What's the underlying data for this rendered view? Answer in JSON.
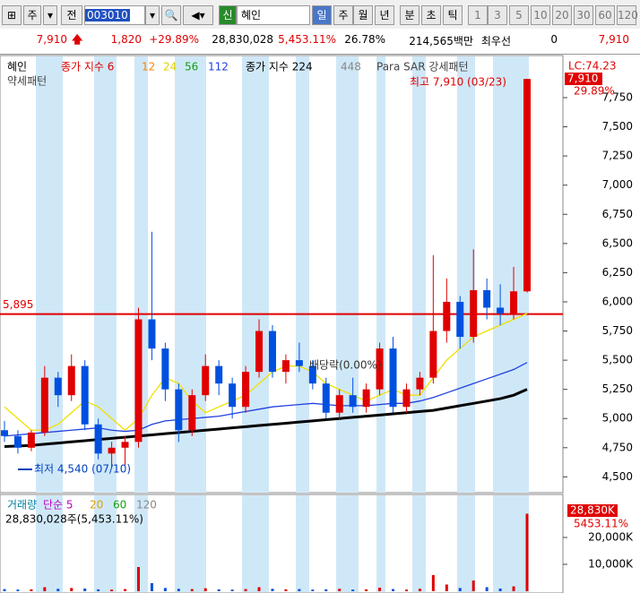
{
  "toolbar": {
    "market": "주",
    "prev": "전",
    "code": "003010",
    "new": "신",
    "name": "혜인",
    "periods": [
      "일",
      "주",
      "월",
      "년",
      "분",
      "초",
      "틱",
      "1",
      "3",
      "5",
      "10",
      "20",
      "30",
      "60",
      "120"
    ]
  },
  "info_bar": [
    "7,910",
    "1,820",
    "+29.89%",
    "28,830,028",
    "5,453.11%",
    "26.78%",
    "214,565백만",
    "최우선",
    "0",
    "7,910"
  ],
  "chart_data": [
    {
      "type": "candlestick",
      "legend": {
        "name": "혜인",
        "ma_label": "종가 지수 6",
        "ma_periods": [
          "12",
          "24",
          "56",
          "112"
        ],
        "ma_long_label": "종가 지수 224",
        "ma_long2": "448",
        "sar_label": "Para SAR 강세패턴",
        "sar_label2": "약세패턴"
      },
      "lc_label": "LC:74.23",
      "last_label": "7,910",
      "change_label": "29.89%",
      "high_annotation": "최고 7,910 (03/23)",
      "low_annotation": "최저 4,540 (07/10)",
      "event_annotation": "배당락(0.00%)",
      "reference_line": {
        "value": 5895,
        "label": "5,895",
        "color": "#e00000"
      },
      "ylim": [
        4380,
        8080
      ],
      "yticks": [
        {
          "value": 4500,
          "label": "4,500"
        },
        {
          "value": 4750,
          "label": "4,750"
        },
        {
          "value": 5000,
          "label": "5,000"
        },
        {
          "value": 5250,
          "label": "5,250"
        },
        {
          "value": 5500,
          "label": "5,500"
        },
        {
          "value": 5750,
          "label": "5,750"
        },
        {
          "value": 6000,
          "label": "6,000"
        },
        {
          "value": 6250,
          "label": "6,250"
        },
        {
          "value": 6500,
          "label": "6,500"
        },
        {
          "value": 6750,
          "label": "6,750"
        },
        {
          "value": 7000,
          "label": "7,000"
        },
        {
          "value": 7250,
          "label": "7,250"
        },
        {
          "value": 7500,
          "label": "7,500"
        },
        {
          "value": 7750,
          "label": "7,750"
        }
      ],
      "up_color": "#e00000",
      "down_color": "#0050e0",
      "open": [
        4900,
        4850,
        4750,
        4880,
        5350,
        5200,
        5450,
        4950,
        4700,
        4750,
        4800,
        5850,
        5600,
        5250,
        4900,
        5200,
        5450,
        5300,
        5100,
        5400,
        5750,
        5400,
        5500,
        5450,
        5300,
        5050,
        5200,
        5100,
        5250,
        5600,
        5100,
        5250,
        5350,
        5750,
        6000,
        5700,
        6100,
        5950,
        5900,
        6090
      ],
      "high": [
        4980,
        4900,
        4900,
        5450,
        5400,
        5550,
        5500,
        5000,
        4800,
        4850,
        5950,
        6600,
        5650,
        5300,
        5250,
        5550,
        5500,
        5350,
        5450,
        5850,
        5800,
        5550,
        5650,
        5500,
        5350,
        5250,
        5350,
        5300,
        5650,
        5700,
        5300,
        5400,
        6400,
        6200,
        6050,
        6450,
        6200,
        6150,
        6300,
        7910
      ],
      "low": [
        4800,
        4700,
        4720,
        4850,
        5100,
        5150,
        4900,
        4650,
        4580,
        4600,
        4750,
        5500,
        5150,
        4800,
        4850,
        5150,
        5200,
        5000,
        5050,
        5350,
        5350,
        5300,
        5400,
        5250,
        5000,
        5000,
        5050,
        5050,
        5200,
        5050,
        5050,
        5200,
        5300,
        5650,
        5600,
        5650,
        5850,
        5800,
        5850,
        6080
      ],
      "close": [
        4850,
        4750,
        4880,
        5350,
        5200,
        5450,
        4950,
        4700,
        4750,
        4800,
        5850,
        5600,
        5250,
        4900,
        5200,
        5450,
        5300,
        5100,
        5400,
        5750,
        5400,
        5500,
        5450,
        5300,
        5050,
        5200,
        5100,
        5250,
        5600,
        5100,
        5250,
        5350,
        5750,
        6000,
        5700,
        6100,
        5950,
        5900,
        6090,
        7910
      ],
      "series": [
        {
          "name": "24",
          "color": "#f0e000",
          "values": [
            5100,
            5000,
            4900,
            4900,
            4950,
            5050,
            5150,
            5100,
            5000,
            4900,
            5000,
            5200,
            5350,
            5300,
            5150,
            5050,
            5100,
            5150,
            5200,
            5300,
            5400,
            5450,
            5450,
            5400,
            5300,
            5250,
            5200,
            5150,
            5200,
            5250,
            5200,
            5200,
            5350,
            5500,
            5600,
            5700,
            5750,
            5800,
            5850,
            5900
          ]
        },
        {
          "name": "112",
          "color": "#2040e0",
          "values": [
            4850,
            4860,
            4870,
            4880,
            4890,
            4900,
            4910,
            4920,
            4900,
            4890,
            4900,
            4950,
            4980,
            4990,
            5000,
            5010,
            5020,
            5040,
            5060,
            5080,
            5100,
            5110,
            5120,
            5130,
            5120,
            5110,
            5110,
            5110,
            5120,
            5130,
            5130,
            5150,
            5180,
            5220,
            5260,
            5300,
            5340,
            5380,
            5420,
            5480
          ]
        },
        {
          "name": "224",
          "color": "#000000",
          "values": [
            4760,
            4765,
            4770,
            4780,
            4790,
            4800,
            4810,
            4820,
            4830,
            4840,
            4850,
            4860,
            4870,
            4880,
            4890,
            4900,
            4910,
            4920,
            4930,
            4940,
            4950,
            4960,
            4970,
            4980,
            4990,
            5000,
            5010,
            5020,
            5030,
            5040,
            5050,
            5060,
            5070,
            5090,
            5110,
            5130,
            5150,
            5170,
            5200,
            5250
          ]
        }
      ]
    },
    {
      "type": "volume",
      "legend": {
        "name": "거래량",
        "ma_label": "단순 5",
        "ma_periods": [
          "20",
          "60",
          "120"
        ],
        "summary": "28,830,028주(5,453.11%)"
      },
      "last_label": "28,830K",
      "change_label": "5453.11%",
      "ylim": [
        0,
        35000
      ],
      "yticks": [
        {
          "value": 10000,
          "label": "10,000K"
        },
        {
          "value": 20000,
          "label": "20,000K"
        }
      ],
      "values": [
        800,
        600,
        700,
        1500,
        900,
        1200,
        1000,
        700,
        600,
        800,
        9000,
        3000,
        1200,
        900,
        800,
        1100,
        700,
        600,
        800,
        1500,
        900,
        700,
        800,
        600,
        700,
        900,
        600,
        700,
        1300,
        800,
        600,
        900,
        6000,
        2500,
        1200,
        4000,
        1500,
        1000,
        1800,
        28830
      ]
    }
  ]
}
